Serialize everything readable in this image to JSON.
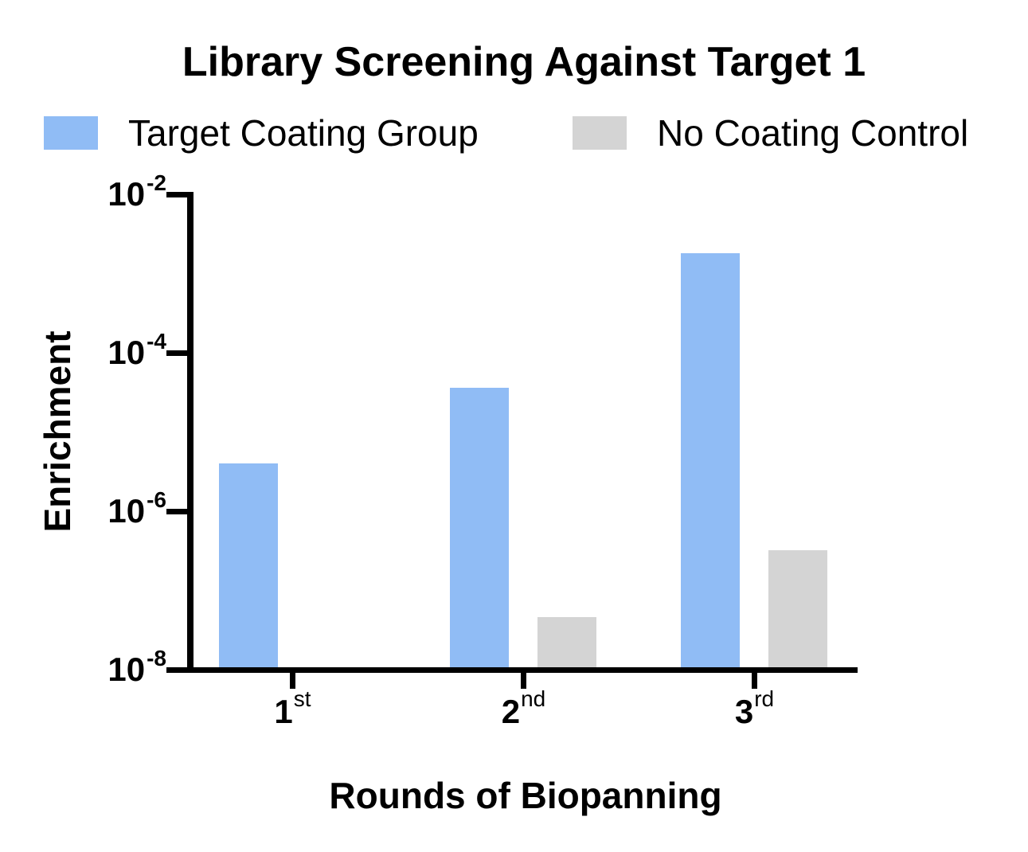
{
  "title": "Library Screening Against Target 1",
  "colors": {
    "target_coating": "#90BCF5",
    "no_coating": "#D4D4D4",
    "axis": "#000000"
  },
  "legend": [
    {
      "label": "Target Coating Group",
      "color": "#90BCF5"
    },
    {
      "label": "No Coating Control",
      "color": "#D4D4D4"
    }
  ],
  "y_axis": {
    "label": "Enrichment",
    "scale": "log",
    "ticks": [
      {
        "base": "10",
        "exp": "-2",
        "value": 0.01
      },
      {
        "base": "10",
        "exp": "-4",
        "value": 0.0001
      },
      {
        "base": "10",
        "exp": "-6",
        "value": 1e-06
      },
      {
        "base": "10",
        "exp": "-8",
        "value": 1e-08
      }
    ]
  },
  "x_axis": {
    "label": "Rounds of Biopanning",
    "categories": [
      {
        "base": "1",
        "sup": "st"
      },
      {
        "base": "2",
        "sup": "nd"
      },
      {
        "base": "3",
        "sup": "rd"
      }
    ]
  },
  "chart_data": {
    "type": "bar",
    "title": "Library Screening Against Target 1",
    "xlabel": "Rounds of Biopanning",
    "ylabel": "Enrichment",
    "yscale": "log",
    "ylim": [
      1e-08,
      0.01
    ],
    "grid": false,
    "legend_position": "top",
    "categories": [
      "1st",
      "2nd",
      "3rd"
    ],
    "series": [
      {
        "name": "Target Coating Group",
        "color": "#90BCF5",
        "values": [
          4e-06,
          3.6e-05,
          0.0018
        ]
      },
      {
        "name": "No Coating Control",
        "color": "#D4D4D4",
        "values": [
          null,
          4.6e-08,
          3.2e-07
        ]
      }
    ]
  }
}
